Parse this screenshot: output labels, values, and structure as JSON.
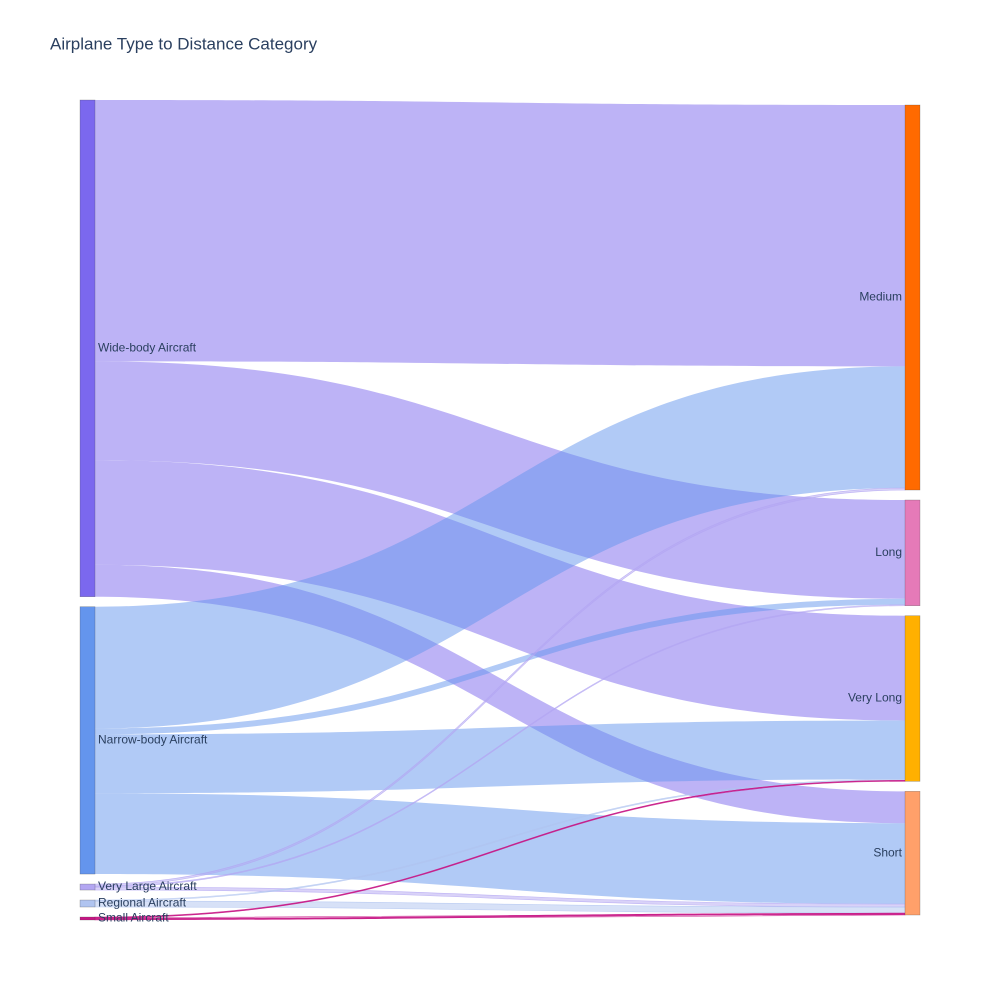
{
  "chart_data": {
    "type": "sankey",
    "title": "Airplane Type to Distance Category",
    "nodes": [
      {
        "label": "Wide-body Aircraft",
        "color": "#7b68ee"
      },
      {
        "label": "Narrow-body Aircraft",
        "color": "#6495ed"
      },
      {
        "label": "Very Large Aircraft",
        "color": "#b3a6f2"
      },
      {
        "label": "Regional Aircraft",
        "color": "#b0c4f0"
      },
      {
        "label": "Small Aircraft",
        "color": "#c71585"
      },
      {
        "label": "Medium",
        "color": "#ff6a00"
      },
      {
        "label": "Long",
        "color": "#e57ab8"
      },
      {
        "label": "Very Long",
        "color": "#ffb000"
      },
      {
        "label": "Short",
        "color": "#ffa06a"
      }
    ],
    "links": [
      {
        "source": 0,
        "target": 5,
        "value": 262
      },
      {
        "source": 0,
        "target": 6,
        "value": 99
      },
      {
        "source": 0,
        "target": 7,
        "value": 105
      },
      {
        "source": 0,
        "target": 8,
        "value": 32
      },
      {
        "source": 1,
        "target": 5,
        "value": 122
      },
      {
        "source": 1,
        "target": 6,
        "value": 6
      },
      {
        "source": 1,
        "target": 7,
        "value": 59
      },
      {
        "source": 1,
        "target": 8,
        "value": 81
      },
      {
        "source": 2,
        "target": 5,
        "value": 2
      },
      {
        "source": 2,
        "target": 6,
        "value": 1
      },
      {
        "source": 2,
        "target": 8,
        "value": 3
      },
      {
        "source": 3,
        "target": 7,
        "value": 1
      },
      {
        "source": 3,
        "target": 8,
        "value": 6
      },
      {
        "source": 4,
        "target": 7,
        "value": 1
      },
      {
        "source": 4,
        "target": 8,
        "value": 2
      }
    ]
  }
}
